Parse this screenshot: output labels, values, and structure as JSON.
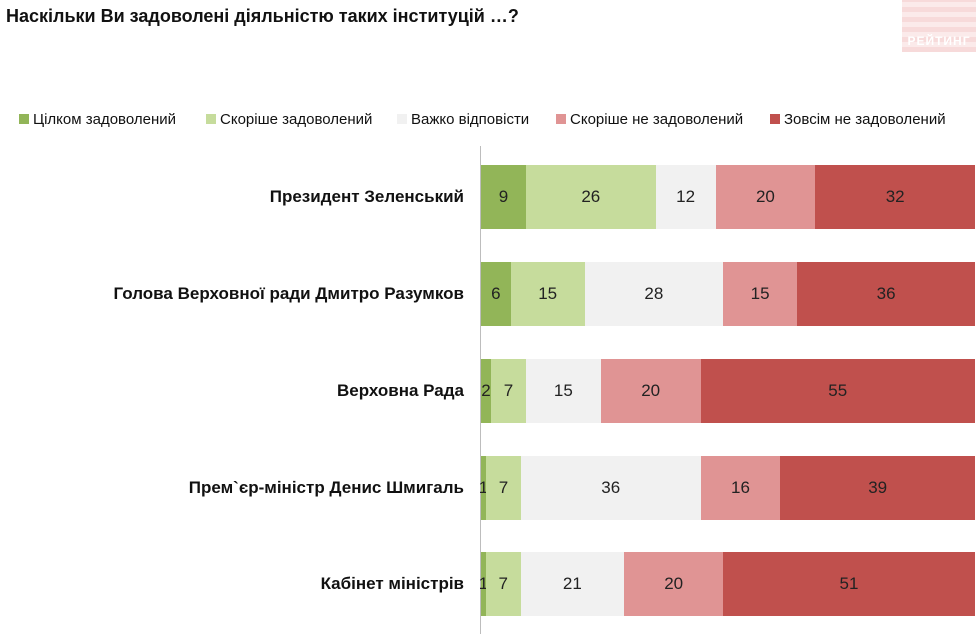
{
  "title": "Наскільки Ви задоволені діяльністю таких інституцій …?",
  "logo": {
    "text": "РЕЙТИНГ"
  },
  "chart_data": {
    "type": "bar",
    "orientation": "horizontal",
    "stacked": true,
    "title": "Наскільки Ви задоволені діяльністю таких інституцій …?",
    "categories": [
      "Президент Зеленський",
      "Голова Верховної ради Дмитро Разумков",
      "Верховна Рада",
      "Прем`єр-міністр Денис Шмигаль",
      "Кабінет міністрів"
    ],
    "legend_position": "top",
    "series": [
      {
        "name": "Цілком задоволений",
        "color": "#92b558",
        "values": [
          9,
          6,
          2,
          1,
          1
        ]
      },
      {
        "name": "Скоріше задоволений",
        "color": "#c6dc9c",
        "values": [
          26,
          15,
          7,
          7,
          7
        ]
      },
      {
        "name": "Важко відповісти",
        "color": "#f1f1f1",
        "values": [
          12,
          28,
          15,
          36,
          21
        ]
      },
      {
        "name": "Скоріше не задоволений",
        "color": "#e09494",
        "values": [
          20,
          15,
          20,
          16,
          20
        ]
      },
      {
        "name": "Зовсім не задоволений",
        "color": "#c0504d",
        "values": [
          32,
          36,
          55,
          39,
          51
        ]
      }
    ]
  }
}
